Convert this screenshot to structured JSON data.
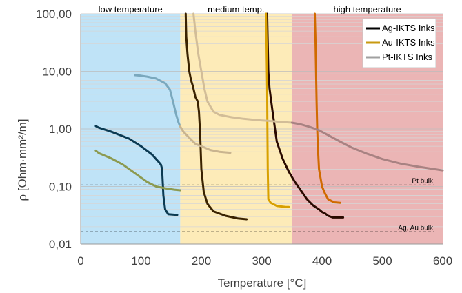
{
  "chart_data": {
    "type": "line",
    "xlabel": "Temperature [°C]",
    "ylabel": "ρ [Ohm·mm²/m]",
    "xlim": [
      0,
      600
    ],
    "ylim": [
      0.01,
      100
    ],
    "y_scale": "log",
    "x_ticks": [
      "0",
      "100",
      "200",
      "300",
      "400",
      "500",
      "600"
    ],
    "x_tick_values": [
      0,
      100,
      200,
      300,
      400,
      500,
      600
    ],
    "y_ticks": [
      "0,01",
      "0,10",
      "1,00",
      "10,00",
      "100,00"
    ],
    "y_tick_values": [
      0.01,
      0.1,
      1,
      10,
      100
    ],
    "grid": "horizontal minor lines",
    "legend": "top-right",
    "regions": [
      {
        "label": "low temperature",
        "x0": 0,
        "x1": 165,
        "color": "#bfe3f7"
      },
      {
        "label": "medium temp.",
        "x0": 165,
        "x1": 350,
        "color": "#fdebb8"
      },
      {
        "label": "high temperature",
        "x0": 350,
        "x1": 600,
        "color": "#ebb5b5"
      }
    ],
    "reference_lines": [
      {
        "label": "Pt bulk",
        "y": 0.106
      },
      {
        "label": "Ag, Au bulk",
        "y": 0.0163
      }
    ],
    "series": [
      {
        "name": "Ag-IKTS Inks",
        "color": "#000000",
        "legend": true,
        "curves": [
          {
            "color": "#0b3a52",
            "x": [
              25,
              30,
              50,
              80,
              100,
              118,
              130,
              133,
              135,
              136,
              137,
              140,
              145,
              160
            ],
            "y": [
              1.12,
              1.05,
              0.9,
              0.68,
              0.5,
              0.36,
              0.26,
              0.24,
              0.2,
              0.12,
              0.07,
              0.04,
              0.033,
              0.032
            ]
          },
          {
            "color": "#3a2200",
            "x": [
              174,
              175,
              177,
              180,
              183,
              186,
              190,
              194,
              196,
              198,
              200,
              204,
              210,
              220,
              240,
              260,
              275
            ],
            "y": [
              100,
              40,
              20,
              10,
              7,
              5.5,
              3.6,
              3,
              2,
              0.8,
              0.2,
              0.08,
              0.05,
              0.037,
              0.031,
              0.028,
              0.027
            ]
          },
          {
            "color": "#2a0a00",
            "x": [
              309,
              310,
              311,
              313,
              318,
              325,
              335,
              345,
              355,
              365,
              375,
              385,
              395,
              400,
              405,
              410,
              418,
              425,
              435
            ],
            "y": [
              100,
              30,
              10,
              5,
              2,
              0.6,
              0.3,
              0.18,
              0.12,
              0.085,
              0.06,
              0.047,
              0.04,
              0.036,
              0.034,
              0.031,
              0.029,
              0.029,
              0.029
            ]
          }
        ]
      },
      {
        "name": "Au-IKTS Inks",
        "color": "#c89a10",
        "legend": true,
        "curves": [
          {
            "color": "#8c9a50",
            "x": [
              25,
              30,
              50,
              70,
              90,
              110,
              125,
              140,
              155,
              165
            ],
            "y": [
              0.42,
              0.38,
              0.31,
              0.24,
              0.17,
              0.12,
              0.1,
              0.093,
              0.088,
              0.086
            ]
          },
          {
            "color": "#d8a000",
            "x": [
              307,
              308,
              309,
              309.5,
              310,
              311,
              315,
              325,
              340,
              345
            ],
            "y": [
              100,
              30,
              5,
              1,
              0.2,
              0.06,
              0.052,
              0.046,
              0.044,
              0.044
            ]
          },
          {
            "color": "#d06a00",
            "x": [
              388,
              389,
              390,
              391,
              392,
              393,
              395,
              400,
              405,
              410,
              420,
              430
            ],
            "y": [
              100,
              40,
              10,
              3,
              1,
              0.5,
              0.2,
              0.1,
              0.075,
              0.06,
              0.053,
              0.052
            ]
          }
        ]
      },
      {
        "name": "Pt-IKTS Inks",
        "color": "#a0a0a0",
        "legend": true,
        "curves": [
          {
            "color": "#7aa8bd",
            "x": [
              90,
              100,
              110,
              125,
              140,
              148,
              153,
              158,
              162,
              165
            ],
            "y": [
              8.6,
              8.4,
              8.1,
              7.5,
              6.2,
              4.8,
              3,
              1.8,
              1.3,
              1.1
            ]
          },
          {
            "color": "#c9b48f",
            "x": [
              165,
              170,
              180,
              190,
              200,
              215,
              230,
              248
            ],
            "y": [
              1.1,
              0.9,
              0.7,
              0.55,
              0.5,
              0.43,
              0.4,
              0.385
            ]
          },
          {
            "color": "#d2bd98",
            "x": [
              187,
              190,
              195,
              200,
              205,
              210,
              220,
              230,
              250,
              270,
              290,
              310,
              330,
              350
            ],
            "y": [
              100,
              50,
              20,
              10,
              5,
              3,
              2,
              1.75,
              1.6,
              1.5,
              1.43,
              1.38,
              1.33,
              1.28
            ]
          },
          {
            "color": "#a88282",
            "x": [
              350,
              365,
              380,
              395,
              410,
              430,
              450,
              475,
              500,
              530,
              560,
              600
            ],
            "y": [
              1.28,
              1.2,
              1.08,
              0.95,
              0.78,
              0.6,
              0.47,
              0.37,
              0.3,
              0.25,
              0.22,
              0.19
            ]
          }
        ]
      }
    ]
  }
}
